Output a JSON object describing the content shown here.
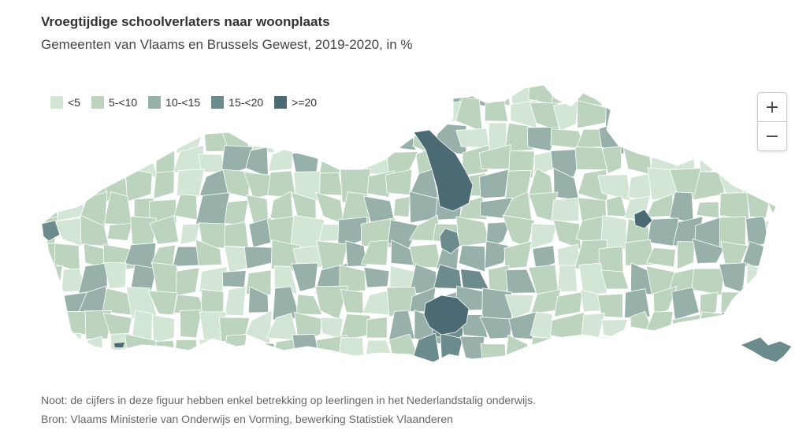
{
  "header": {
    "title": "Vroegtijdige schoolverlaters naar woonplaats",
    "subtitle": "Gemeenten van Vlaams en Brussels Gewest, 2019-2020, in %"
  },
  "legend": {
    "items": [
      {
        "label": "<5",
        "color": "#d3e6d5"
      },
      {
        "label": "5-<10",
        "color": "#bcd3be"
      },
      {
        "label": "10-<15",
        "color": "#97b1aa"
      },
      {
        "label": "15-<20",
        "color": "#6b8b8c"
      },
      {
        "label": ">=20",
        "color": "#4b6a73"
      }
    ]
  },
  "zoom": {
    "zoom_in_label": "+",
    "zoom_out_label": "−"
  },
  "footer": {
    "note": "Noot: de cijfers in deze figuur hebben enkel betrekking op leerlingen in het Nederlandstalig onderwijs.",
    "source": "Bron: Vlaams Ministerie van Onderwijs en Vorming, bewerking Statistiek Vlaanderen"
  },
  "map": {
    "region_classes": [
      "5-<10",
      "<5",
      "5-<10",
      "10-<15",
      "5-<10",
      "<5",
      "5-<10",
      "5-<10",
      "<5",
      "5-<10",
      "10-<15",
      "5-<10",
      "15-<20",
      "5-<10",
      "<5",
      "10-<15",
      "5-<10",
      "5-<10",
      "<5",
      "10-<15",
      "5-<10",
      ">=20",
      "15-<20",
      "10-<15",
      "5-<10",
      "<5",
      "5-<10",
      "10-<15",
      "5-<10",
      "5-<10"
    ]
  }
}
